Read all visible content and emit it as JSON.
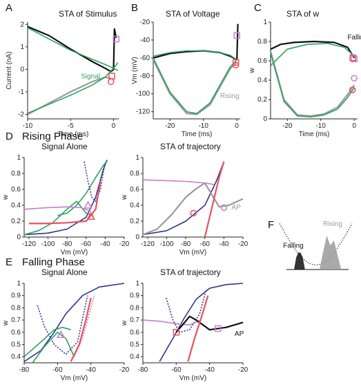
{
  "panel_letters": [
    "A",
    "B",
    "C",
    "D",
    "E",
    "F"
  ],
  "section_titles": {
    "rising": "Rising Phase",
    "falling": "Falling Phase"
  },
  "colors": {
    "black": "#111111",
    "green": "#2ca25f",
    "gray": "#9a9a9a",
    "navy": "#2b3593",
    "purple": "#c77dcc",
    "red": "#e8505b",
    "darkgray": "#555555"
  },
  "chart_data": [
    {
      "id": "A",
      "type": "line",
      "title": "STA of Stimulus",
      "xlabel": "Time (ms)",
      "ylabel": "Current (nA)",
      "xlim": [
        -10,
        0.6
      ],
      "ylim": [
        -2.2,
        2.1
      ],
      "xticks": [
        -10,
        -5,
        0
      ],
      "yticks": [
        -2,
        -1,
        0,
        1,
        2
      ],
      "annotations": [
        {
          "text": "Signal",
          "x": -3.8,
          "y": -0.4,
          "color": "green"
        }
      ],
      "series": [
        {
          "color": "black",
          "x": [
            -10,
            -7.5,
            -5,
            -2.5,
            -1,
            -0.3,
            0,
            0.1,
            0.3
          ],
          "y": [
            1.9,
            1.5,
            0.9,
            0.35,
            0.05,
            -0.1,
            0,
            1.8,
            1.4
          ]
        },
        {
          "color": "gray",
          "x": [
            -10,
            -7.5,
            -5,
            -2.5,
            -1,
            -0.3
          ],
          "y": [
            -2.0,
            -1.5,
            -1.0,
            -0.55,
            -0.35,
            -0.4
          ]
        },
        {
          "name": "Signal",
          "color": "green",
          "x": [
            -10,
            -7.5,
            -5,
            -2.5,
            -1,
            0,
            0.5
          ],
          "y": [
            1.85,
            1.35,
            0.85,
            0.45,
            0.22,
            0.05,
            -0.05
          ]
        },
        {
          "color": "green",
          "x": [
            -10,
            -7.5,
            -5,
            -2.5,
            -1,
            0,
            0.5
          ],
          "y": [
            -1.95,
            -1.55,
            -1.15,
            -0.7,
            -0.35,
            0.05,
            0.3
          ]
        }
      ],
      "markers": [
        {
          "shape": "square",
          "color": "purple",
          "x": 0.3,
          "y": 1.35
        },
        {
          "shape": "square",
          "color": "red",
          "x": -0.2,
          "y": -0.3
        },
        {
          "shape": "circle",
          "color": "red",
          "x": -0.3,
          "y": -0.55
        }
      ]
    },
    {
      "id": "B",
      "type": "line",
      "title": "STA of Voltage",
      "xlabel": "Time (ms)",
      "ylabel": "Vm (mV)",
      "xlim": [
        -25,
        1
      ],
      "ylim": [
        -128,
        -20
      ],
      "xticks": [
        -20,
        -10,
        0
      ],
      "yticks": [
        -120,
        -100,
        -80,
        -60,
        -40,
        -20
      ],
      "annotations": [
        {
          "text": "Rising",
          "x": -5,
          "y": -105,
          "color": "gray"
        }
      ],
      "series": [
        {
          "color": "black",
          "x": [
            -25,
            -20,
            -15,
            -10,
            -5,
            -2,
            0,
            0.3
          ],
          "y": [
            -60,
            -55,
            -53,
            -52,
            -54,
            -58,
            -62,
            -22
          ]
        },
        {
          "color": "green",
          "x": [
            -25,
            -20,
            -15,
            -10,
            -5,
            -2,
            0
          ],
          "y": [
            -58,
            -54,
            -52,
            -52,
            -54,
            -57,
            -62
          ]
        },
        {
          "color": "gray",
          "x": [
            -25,
            -20,
            -15,
            -12,
            -8,
            -5,
            -2,
            0
          ],
          "y": [
            -62,
            -100,
            -122,
            -123,
            -112,
            -92,
            -72,
            -65
          ]
        },
        {
          "color": "green",
          "x": [
            -25,
            -20,
            -15,
            -12,
            -8,
            -5,
            -2,
            0
          ],
          "y": [
            -60,
            -98,
            -120,
            -122,
            -110,
            -90,
            -70,
            -62
          ]
        }
      ],
      "markers": [
        {
          "shape": "square",
          "color": "purple",
          "x": 0,
          "y": -35
        },
        {
          "shape": "square",
          "color": "red",
          "x": -0.3,
          "y": -65
        },
        {
          "shape": "circle",
          "color": "red",
          "x": -0.3,
          "y": -68
        }
      ]
    },
    {
      "id": "C",
      "type": "line",
      "title": "STA of w",
      "xlabel": "Time (ms)",
      "ylabel": "w",
      "xlim": [
        -25,
        1
      ],
      "ylim": [
        0,
        1.0
      ],
      "xticks": [
        -20,
        -10,
        0
      ],
      "yticks": [
        0,
        0.2,
        0.4,
        0.6,
        0.8,
        1
      ],
      "annotations": [
        {
          "text": "Falling",
          "x": -2,
          "y": 0.82,
          "color": "black"
        }
      ],
      "series": [
        {
          "color": "black",
          "x": [
            -25,
            -22,
            -18,
            -12,
            -6,
            -2,
            0
          ],
          "y": [
            0.72,
            0.77,
            0.79,
            0.8,
            0.79,
            0.74,
            0.63
          ]
        },
        {
          "color": "green",
          "x": [
            -25,
            -20,
            -14,
            -8,
            -3,
            0
          ],
          "y": [
            0.55,
            0.72,
            0.77,
            0.78,
            0.74,
            0.65
          ]
        },
        {
          "color": "gray",
          "x": [
            -25,
            -21,
            -17,
            -13,
            -9,
            -5,
            -2,
            0
          ],
          "y": [
            0.7,
            0.2,
            0.04,
            0.03,
            0.05,
            0.12,
            0.25,
            0.35
          ]
        },
        {
          "color": "green",
          "x": [
            -25,
            -21,
            -17,
            -13,
            -9,
            -5,
            -2,
            0
          ],
          "y": [
            0.68,
            0.18,
            0.03,
            0.02,
            0.04,
            0.1,
            0.22,
            0.32
          ]
        }
      ],
      "markers": [
        {
          "shape": "square",
          "color": "purple",
          "x": 0,
          "y": 0.62
        },
        {
          "shape": "circle",
          "color": "purple",
          "x": 0,
          "y": 0.42
        },
        {
          "shape": "circle",
          "color": "red",
          "x": -0.5,
          "y": 0.3
        },
        {
          "shape": "square",
          "color": "red",
          "x": -0.4,
          "y": 0.63
        }
      ]
    },
    {
      "id": "D1",
      "type": "line",
      "title": "Signal Alone",
      "xlabel": "Vm (mV)",
      "ylabel": "w",
      "xlim": [
        -125,
        -20
      ],
      "ylim": [
        0,
        1.0
      ],
      "xticks": [
        -120,
        -100,
        -80,
        -60,
        -40,
        -20
      ],
      "yticks": [
        0,
        0.2,
        0.4,
        0.6,
        0.8,
        1
      ],
      "series": [
        {
          "color": "navy",
          "x": [
            -125,
            -100,
            -80,
            -60,
            -50,
            -42,
            -38
          ],
          "y": [
            0.03,
            0.05,
            0.1,
            0.25,
            0.5,
            0.85,
            0.97
          ]
        },
        {
          "color": "navy",
          "dash": true,
          "x": [
            -62,
            -58,
            -54,
            -50,
            -45,
            -40
          ],
          "y": [
            0.95,
            0.7,
            0.5,
            0.45,
            0.6,
            0.95
          ]
        },
        {
          "color": "green",
          "x": [
            -125,
            -110,
            -95,
            -80,
            -70,
            -60,
            -52
          ],
          "y": [
            0.03,
            0.08,
            0.18,
            0.35,
            0.45,
            0.3,
            0.26
          ]
        },
        {
          "color": "green",
          "x": [
            -90,
            -80,
            -70,
            -60,
            -50,
            -42,
            -38
          ],
          "y": [
            0.27,
            0.3,
            0.4,
            0.55,
            0.75,
            0.9,
            0.95
          ]
        },
        {
          "color": "purple",
          "x": [
            -125,
            -100,
            -80,
            -65,
            -55
          ],
          "y": [
            0.35,
            0.37,
            0.38,
            0.37,
            0.32
          ]
        },
        {
          "color": "red",
          "x": [
            -120,
            -100,
            -80,
            -60,
            -50,
            -45
          ],
          "y": [
            0.17,
            0.17,
            0.18,
            0.2,
            0.35,
            0.7
          ]
        }
      ],
      "markers": [
        {
          "shape": "triangle",
          "color": "purple",
          "x": -58,
          "y": 0.4
        },
        {
          "shape": "triangle",
          "color": "red",
          "x": -55,
          "y": 0.26
        }
      ]
    },
    {
      "id": "D2",
      "type": "line",
      "title": "STA of trajectory",
      "xlabel": "Vm (mV)",
      "ylabel": "w",
      "xlim": [
        -125,
        -20
      ],
      "ylim": [
        0,
        1.0
      ],
      "xticks": [
        -120,
        -100,
        -80,
        -60,
        -40,
        -20
      ],
      "yticks": [
        0,
        0.2,
        0.4,
        0.6,
        0.8,
        1
      ],
      "annotations": [
        {
          "text": "AP",
          "x": -32,
          "y": 0.35,
          "color": "gray"
        }
      ],
      "series": [
        {
          "color": "navy",
          "x": [
            -125,
            -100,
            -80,
            -60,
            -48,
            -40
          ],
          "y": [
            0.03,
            0.08,
            0.2,
            0.4,
            0.7,
            0.95
          ]
        },
        {
          "color": "gray",
          "x": [
            -125,
            -110,
            -95,
            -80,
            -70,
            -60,
            -45,
            -35,
            -20
          ],
          "y": [
            0.03,
            0.1,
            0.28,
            0.5,
            0.6,
            0.68,
            0.38,
            0.4,
            0.48
          ]
        },
        {
          "color": "purple",
          "x": [
            -125,
            -100,
            -80,
            -60,
            -50
          ],
          "y": [
            0.72,
            0.71,
            0.7,
            0.68,
            0.66
          ]
        },
        {
          "color": "red",
          "x": [
            -60,
            -55,
            -50,
            -45,
            -40
          ],
          "y": [
            0.0,
            0.25,
            0.5,
            0.75,
            0.95
          ]
        }
      ],
      "markers": [
        {
          "shape": "circle",
          "color": "red",
          "x": -72,
          "y": 0.3
        },
        {
          "shape": "circle",
          "color": "purple",
          "x": -40,
          "y": 0.37
        }
      ]
    },
    {
      "id": "E1",
      "type": "line",
      "title": "Signal Alone",
      "xlabel": "Vm (mV)",
      "ylabel": "w",
      "xlim": [
        -80,
        -20
      ],
      "ylim": [
        0.35,
        1.0
      ],
      "xticks": [
        -80,
        -60,
        -40,
        -20
      ],
      "yticks": [
        0.4,
        0.5,
        0.6,
        0.7,
        0.8,
        0.9,
        1
      ],
      "series": [
        {
          "color": "navy",
          "x": [
            -80,
            -70,
            -62,
            -55,
            -45,
            -35,
            -20
          ],
          "y": [
            0.36,
            0.45,
            0.6,
            0.75,
            0.9,
            0.97,
            1.0
          ]
        },
        {
          "color": "navy",
          "dash": true,
          "x": [
            -72,
            -68,
            -62,
            -55,
            -48,
            -42
          ],
          "y": [
            0.82,
            0.65,
            0.5,
            0.42,
            0.52,
            0.9
          ]
        },
        {
          "color": "green",
          "x": [
            -80,
            -70,
            -62,
            -57,
            -52
          ],
          "y": [
            0.4,
            0.52,
            0.62,
            0.64,
            0.62
          ]
        },
        {
          "color": "green",
          "x": [
            -75,
            -68,
            -60,
            -55,
            -50
          ],
          "y": [
            0.35,
            0.48,
            0.6,
            0.55,
            0.4
          ]
        },
        {
          "color": "purple",
          "dash": true,
          "x": [
            -50,
            -45,
            -42,
            -38
          ],
          "y": [
            0.4,
            0.55,
            0.7,
            0.9
          ]
        },
        {
          "color": "red",
          "x": [
            -52,
            -47,
            -43,
            -40
          ],
          "y": [
            0.36,
            0.5,
            0.7,
            0.88
          ]
        }
      ],
      "markers": [
        {
          "shape": "triangle",
          "color": "purple",
          "x": -58,
          "y": 0.58
        }
      ]
    },
    {
      "id": "E2",
      "type": "line",
      "title": "STA of trajectory",
      "xlabel": "Vm (mV)",
      "ylabel": "w",
      "xlim": [
        -80,
        -20
      ],
      "ylim": [
        0.35,
        1.0
      ],
      "xticks": [
        -80,
        -60,
        -40,
        -20
      ],
      "yticks": [
        0.4,
        0.5,
        0.6,
        0.7,
        0.8,
        0.9,
        1
      ],
      "annotations": [
        {
          "text": "AP",
          "x": -25,
          "y": 0.57,
          "color": "black"
        }
      ],
      "series": [
        {
          "color": "navy",
          "x": [
            -70,
            -62,
            -55,
            -48,
            -40,
            -30,
            -20
          ],
          "y": [
            0.36,
            0.55,
            0.72,
            0.87,
            0.96,
            0.99,
            1.0
          ]
        },
        {
          "color": "navy",
          "dash": true,
          "x": [
            -66,
            -62,
            -58,
            -52,
            -46,
            -42
          ],
          "y": [
            0.88,
            0.7,
            0.6,
            0.62,
            0.75,
            0.95
          ]
        },
        {
          "color": "purple",
          "x": [
            -80,
            -70,
            -60,
            -52,
            -45
          ],
          "y": [
            0.7,
            0.69,
            0.67,
            0.66,
            0.7
          ]
        },
        {
          "color": "black",
          "x": [
            -60,
            -55,
            -52,
            -48,
            -40,
            -30,
            -20
          ],
          "y": [
            0.6,
            0.68,
            0.73,
            0.7,
            0.62,
            0.64,
            0.68
          ]
        },
        {
          "color": "red",
          "x": [
            -53,
            -49,
            -45,
            -41
          ],
          "y": [
            0.36,
            0.55,
            0.72,
            0.9
          ]
        }
      ],
      "markers": [
        {
          "shape": "square",
          "color": "red",
          "x": -60,
          "y": 0.6
        },
        {
          "shape": "square",
          "color": "purple",
          "x": -35,
          "y": 0.63
        }
      ]
    },
    {
      "id": "F",
      "type": "area",
      "title": "",
      "labels": [
        {
          "text": "Falling",
          "color": "black"
        },
        {
          "text": "Rising",
          "color": "gray"
        }
      ],
      "series": [
        {
          "name": "Falling",
          "color": "black",
          "x": [
            0.2,
            0.23,
            0.26,
            0.29,
            0.32,
            0.35
          ],
          "y": [
            0.0,
            0.25,
            0.35,
            0.35,
            0.25,
            0.0
          ]
        },
        {
          "name": "Rising",
          "color": "gray",
          "x": [
            0.55,
            0.6,
            0.65,
            0.7,
            0.75,
            0.8,
            0.85
          ],
          "y": [
            0.0,
            0.35,
            0.7,
            0.5,
            0.6,
            0.3,
            0.0
          ]
        }
      ]
    }
  ]
}
